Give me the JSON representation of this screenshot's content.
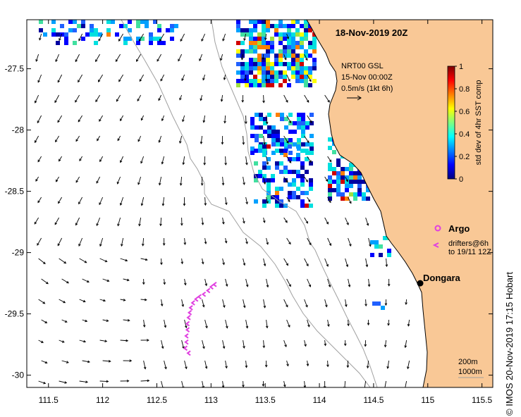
{
  "title": "18-Nov-2019 20Z",
  "credit": "© IMOS 20-Nov-2019 17:15 Hobart",
  "current_legend": {
    "line1": "NRT00 GSL",
    "line2": "15-Nov 00:00Z",
    "line3": "0.5m/s (1kt 6h)"
  },
  "colorbar": {
    "label": "std dev of 4hr SST comp",
    "ticks": [
      "0",
      "0.2",
      "0.4",
      "0.6",
      "0.8",
      "1"
    ],
    "range": [
      0,
      1
    ],
    "colormap": [
      "#00007f",
      "#0000ff",
      "#007fff",
      "#00ffff",
      "#7fff7f",
      "#ffff00",
      "#ff7f00",
      "#ff0000",
      "#7f0000"
    ]
  },
  "argo_legend": {
    "label": "Argo",
    "drifters_line1": "drifters@6h",
    "drifters_line2": "to 19/11 12Z",
    "color": "#e040e0"
  },
  "place": {
    "name": "Dongara",
    "lon": 114.93,
    "lat": -29.25
  },
  "depth_legend": {
    "contour1": "200m",
    "contour2": "1000m"
  },
  "axes": {
    "x_ticks": [
      "111.5",
      "112",
      "112.5",
      "113",
      "113.5",
      "114",
      "114.5",
      "115",
      "115.5"
    ],
    "y_ticks": [
      "-27.5",
      "-28",
      "-28.5",
      "-29",
      "-29.5",
      "-30"
    ],
    "xlim": [
      111.3,
      115.6
    ],
    "ylim": [
      -30.1,
      -27.1
    ]
  },
  "colors": {
    "land": "#f9c896",
    "coast": "#000000",
    "isobath": "#a0a0a0",
    "arrow": "#000000"
  },
  "drifter_track": [
    [
      113.03,
      -29.26
    ],
    [
      113.0,
      -29.28
    ],
    [
      112.97,
      -29.31
    ],
    [
      112.93,
      -29.34
    ],
    [
      112.89,
      -29.36
    ],
    [
      112.86,
      -29.38
    ],
    [
      112.83,
      -29.41
    ],
    [
      112.81,
      -29.45
    ],
    [
      112.8,
      -29.49
    ],
    [
      112.79,
      -29.53
    ],
    [
      112.78,
      -29.58
    ],
    [
      112.78,
      -29.63
    ],
    [
      112.77,
      -29.68
    ],
    [
      112.77,
      -29.73
    ],
    [
      112.76,
      -29.78
    ],
    [
      112.79,
      -29.82
    ]
  ]
}
